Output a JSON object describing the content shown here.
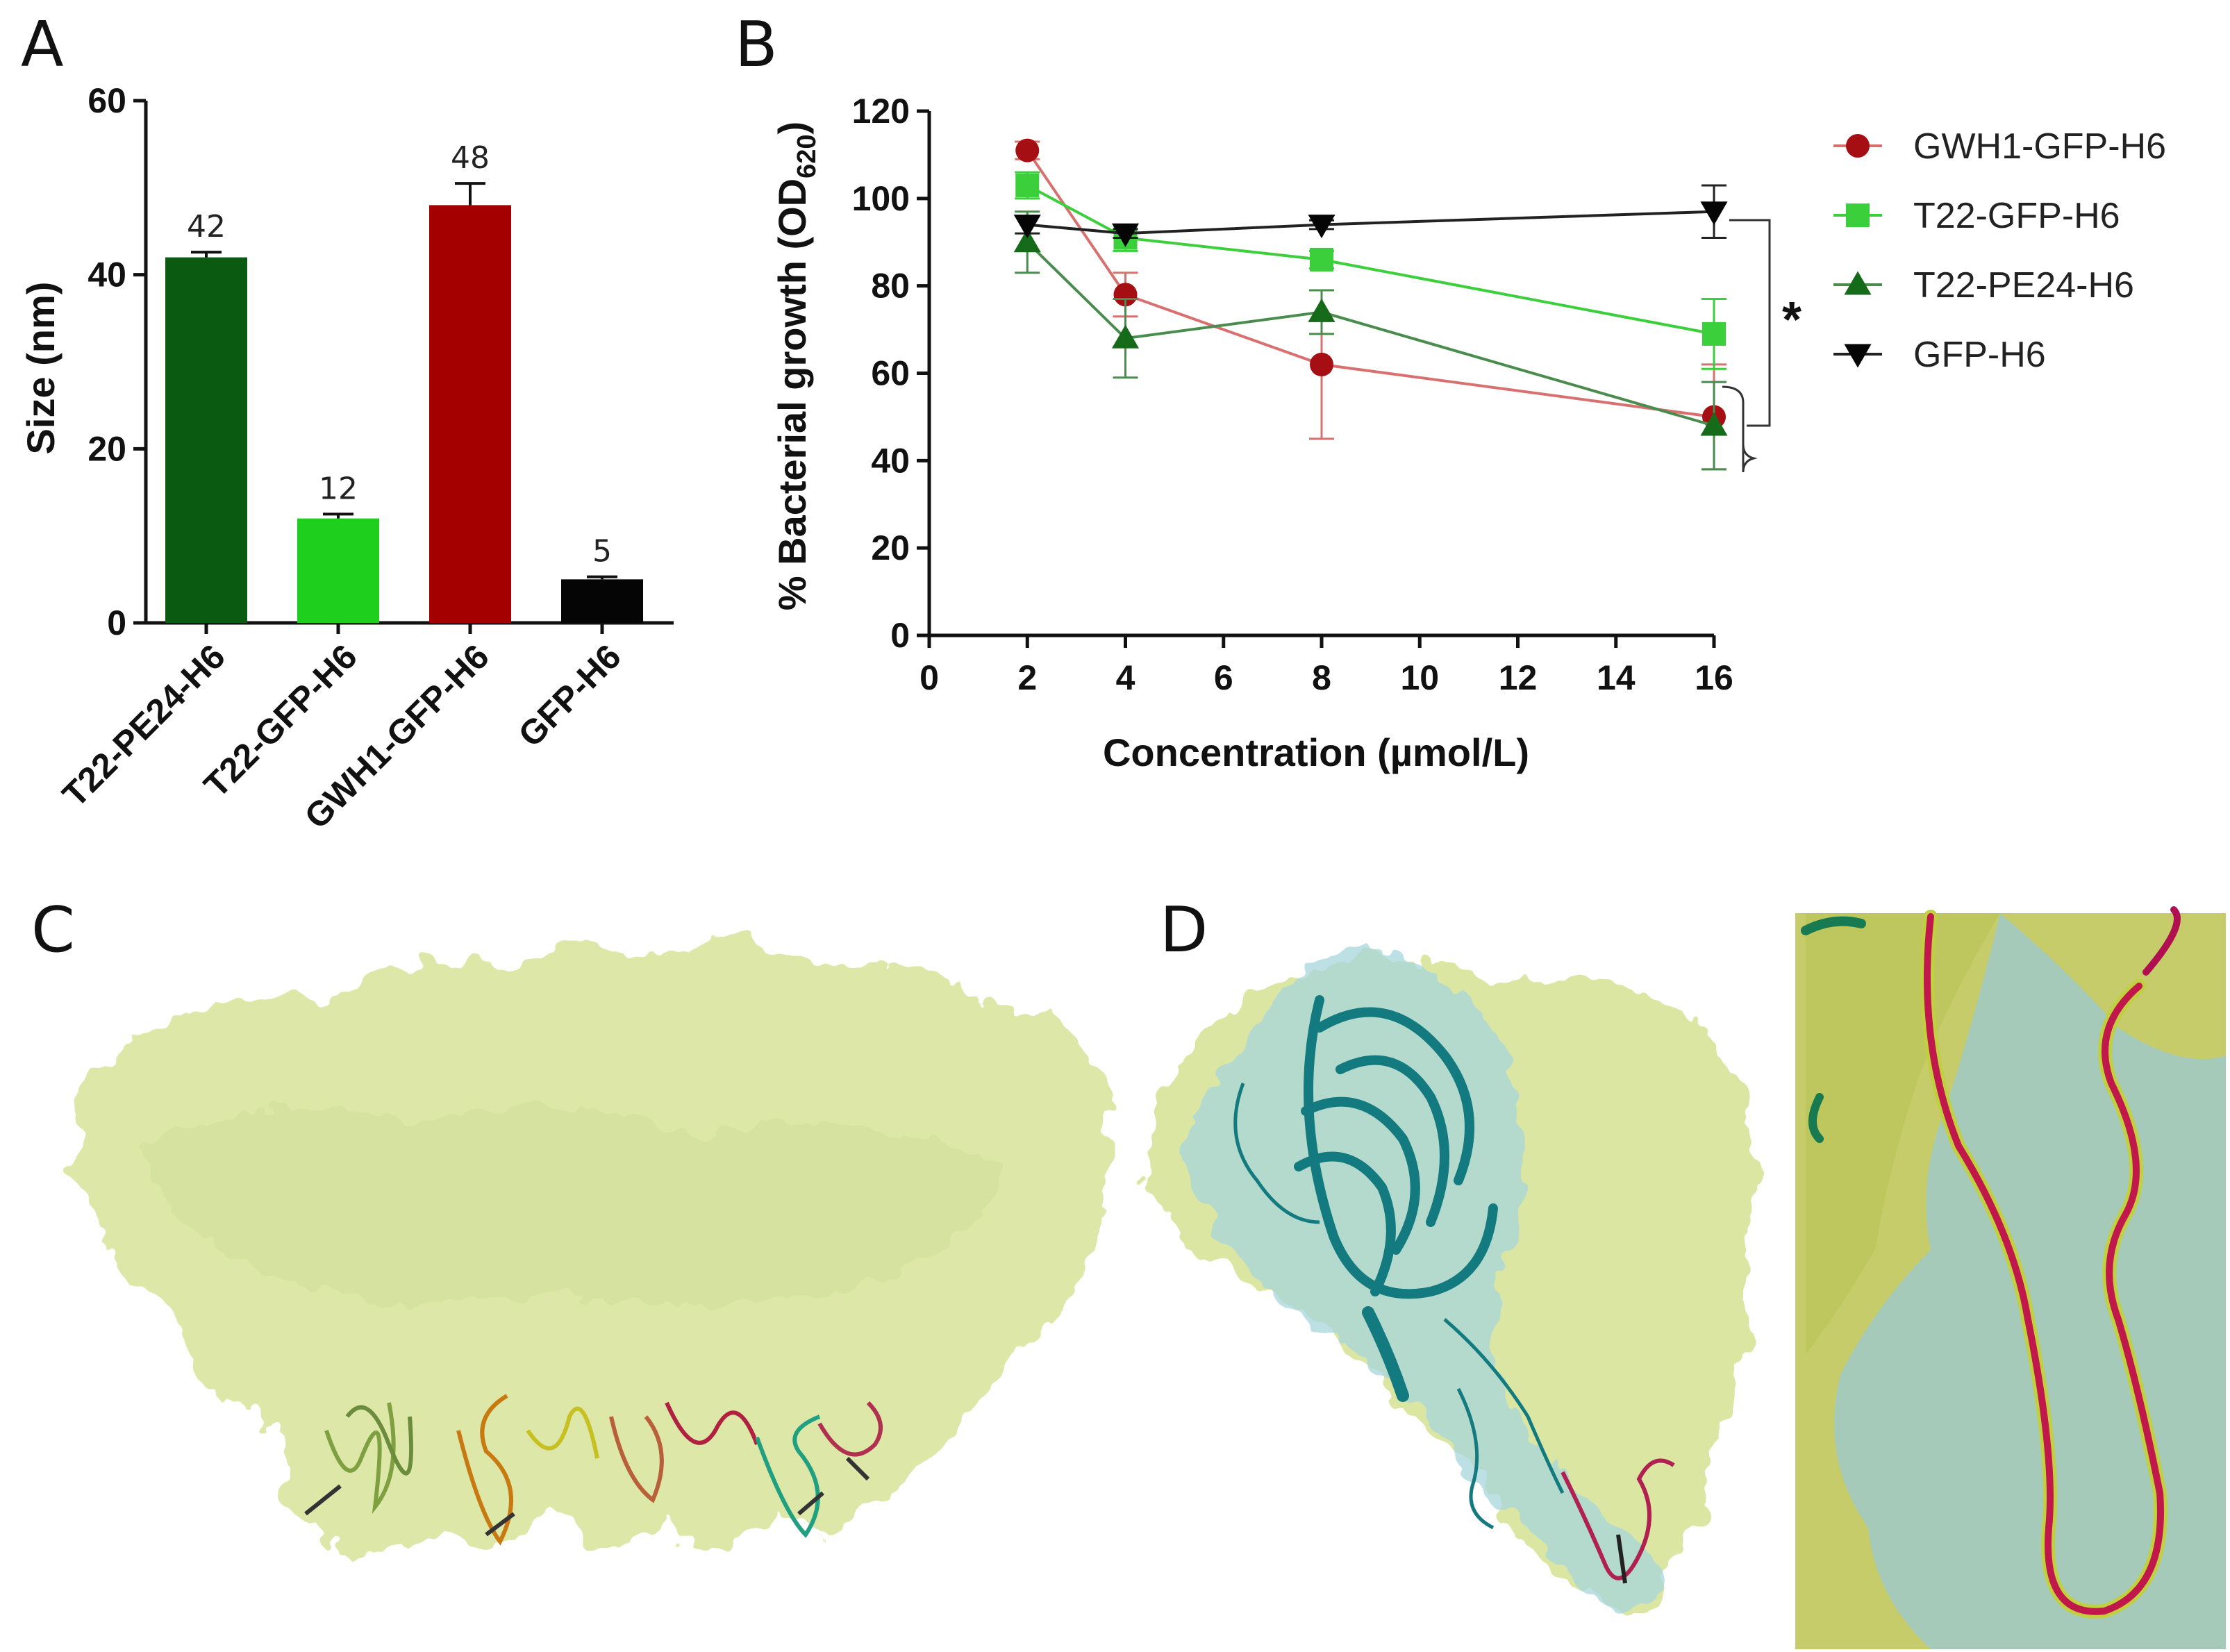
{
  "panels": {
    "a": "A",
    "b": "B",
    "c": "C",
    "d": "D"
  },
  "chart_data": [
    {
      "type": "bar",
      "panel": "A",
      "categories": [
        "T22-PE24-H6",
        "T22-GFP-H6",
        "GWH1-GFP-H6",
        "GFP-H6"
      ],
      "values": [
        42,
        12,
        48,
        5
      ],
      "errors": [
        0.6,
        0.5,
        2.5,
        0.3
      ],
      "value_labels": [
        "42",
        "12",
        "48",
        "5"
      ],
      "colors": [
        "#0b5a12",
        "#1ecf1e",
        "#a50000",
        "#050505"
      ],
      "ylabel": "Size (nm)",
      "ylim": [
        0,
        60
      ],
      "yticks": [
        0,
        20,
        40,
        60
      ]
    },
    {
      "type": "line",
      "panel": "B",
      "xlabel": "Concentration (µmol/L)",
      "ylabel_main": "% Bacterial growth (OD",
      "ylabel_sub": "620",
      "ylabel_end": ")",
      "xlim": [
        0,
        16
      ],
      "ylim": [
        0,
        120
      ],
      "xticks": [
        0,
        2,
        4,
        6,
        8,
        10,
        12,
        14,
        16
      ],
      "yticks": [
        0,
        20,
        40,
        60,
        80,
        100,
        120
      ],
      "x": [
        2,
        4,
        8,
        16
      ],
      "series": [
        {
          "name": "GWH1-GFP-H6",
          "marker": "circle",
          "color": "#a50e12",
          "line_color": "#d97070",
          "values": [
            111,
            78,
            62,
            50
          ],
          "errors": [
            2,
            5,
            17,
            12
          ]
        },
        {
          "name": "T22-GFP-H6",
          "marker": "square",
          "color": "#3ccf3c",
          "line_color": "#3ccf3c",
          "values": [
            103,
            91,
            86,
            69
          ],
          "errors": [
            3,
            3,
            2,
            8
          ]
        },
        {
          "name": "T22-PE24-H6",
          "marker": "triangle-up",
          "color": "#166b1a",
          "line_color": "#4a8c4e",
          "values": [
            90,
            68,
            74,
            48
          ],
          "errors": [
            7,
            9,
            5,
            10
          ]
        },
        {
          "name": "GFP-H6",
          "marker": "triangle-down",
          "color": "#050505",
          "line_color": "#222222",
          "values": [
            94,
            92,
            94,
            97
          ],
          "errors": [
            2,
            1,
            1,
            6
          ]
        }
      ],
      "significance": "*",
      "legend_position": "right"
    }
  ]
}
